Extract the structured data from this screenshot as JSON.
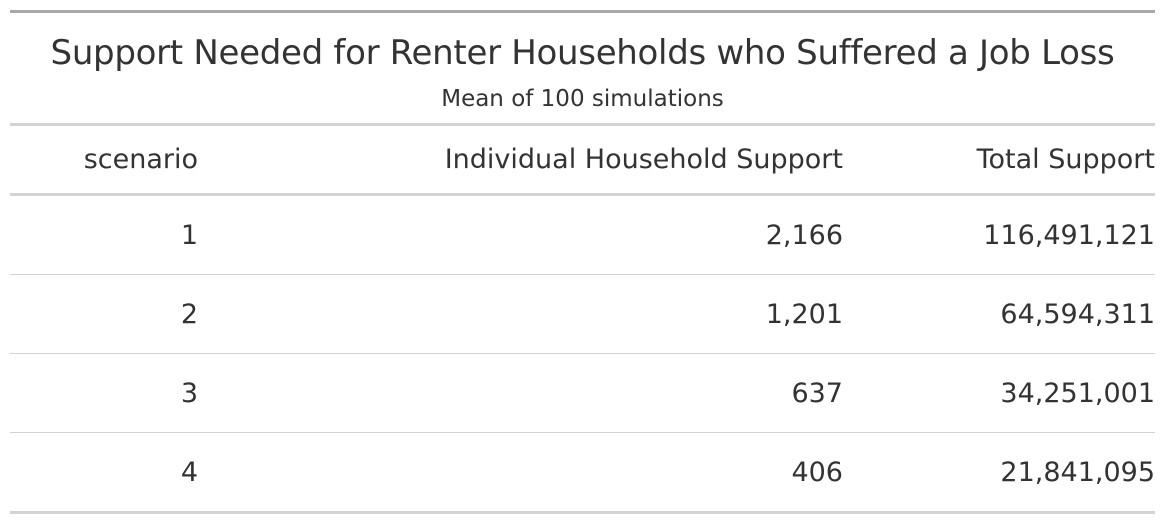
{
  "chart_data": {
    "type": "table",
    "title": "Support Needed for Renter Households who Suffered a Job Loss",
    "subtitle": "Mean of 100 simulations",
    "columns": [
      "scenario",
      "Individual Household Support",
      "Total Support"
    ],
    "rows": [
      [
        "1",
        "2,166",
        "116,491,121"
      ],
      [
        "2",
        "1,201",
        "64,594,311"
      ],
      [
        "3",
        "637",
        "34,251,001"
      ],
      [
        "4",
        "406",
        "21,841,095"
      ]
    ]
  }
}
